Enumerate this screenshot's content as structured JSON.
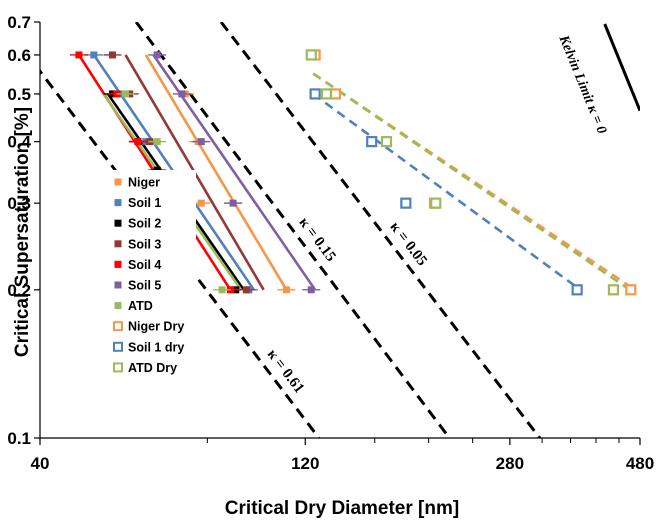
{
  "chart_data": {
    "type": "scatter",
    "xlabel": "Critical Dry Diameter [nm]",
    "ylabel": "Critical Supersaturation [%]",
    "x_scale": "log",
    "y_scale": "log",
    "xlim": [
      40,
      480
    ],
    "ylim": [
      0.1,
      0.7
    ],
    "x_ticks": [
      40,
      120,
      280,
      480
    ],
    "y_ticks": [
      0.1,
      0.2,
      0.3,
      0.4,
      0.5,
      0.6,
      0.7
    ],
    "x_tick_labels": [
      "40",
      "120",
      "280",
      "480"
    ],
    "y_tick_labels": [
      "0.1",
      "0.2",
      "0.3",
      "0.4",
      "0.5",
      "0.6",
      "0.7"
    ],
    "grid": false,
    "legend_position": "left",
    "kappa_lines": [
      {
        "label": "κ = 0.61",
        "kappa": 0.61,
        "x_at_0_6": 38,
        "x_at_0_1": 127
      },
      {
        "label": "κ = 0.15",
        "kappa": 0.15,
        "x_at_0_6": 66,
        "x_at_0_1": 218
      },
      {
        "label": "κ = 0.05",
        "kappa": 0.05,
        "x_at_0_6": 94,
        "x_at_0_1": 317
      }
    ],
    "kelvin_limit": {
      "label": "Kelvin Limit κ = 0",
      "points": [
        [
          340,
          0.7
        ],
        [
          480,
          0.48
        ]
      ]
    },
    "series": [
      {
        "name": "Niger",
        "color": "#f79646",
        "marker": "filled-square",
        "points": [
          [
            73,
            0.5
          ],
          [
            77,
            0.4
          ],
          [
            78,
            0.3
          ],
          [
            111,
            0.2
          ]
        ],
        "fit": [
          [
            62,
            0.6
          ],
          [
            111,
            0.2
          ]
        ]
      },
      {
        "name": "Soil 1",
        "color": "#4f81bd",
        "marker": "filled-square",
        "points": [
          [
            50,
            0.6
          ],
          [
            56,
            0.5
          ],
          [
            62,
            0.4
          ],
          [
            68,
            0.3
          ],
          [
            95,
            0.2
          ]
        ],
        "fit": [
          [
            50,
            0.6
          ],
          [
            97,
            0.2
          ]
        ]
      },
      {
        "name": "Soil 2",
        "color": "#000000",
        "marker": "filled-square",
        "points": [
          [
            54,
            0.5
          ],
          [
            60,
            0.4
          ],
          [
            65,
            0.35
          ],
          [
            67,
            0.3
          ],
          [
            70,
            0.25
          ],
          [
            90,
            0.2
          ]
        ],
        "fit": [
          [
            53,
            0.5
          ],
          [
            93,
            0.2
          ]
        ]
      },
      {
        "name": "Soil 3",
        "color": "#953735",
        "marker": "filled-square",
        "points": [
          [
            54,
            0.6
          ],
          [
            58,
            0.5
          ],
          [
            63,
            0.4
          ],
          [
            72,
            0.3
          ],
          [
            94,
            0.2
          ]
        ],
        "fit": [
          [
            57,
            0.6
          ],
          [
            101,
            0.2
          ]
        ]
      },
      {
        "name": "Soil 4",
        "color": "#ff0000",
        "marker": "filled-square",
        "points": [
          [
            47,
            0.6
          ],
          [
            55,
            0.5
          ],
          [
            60,
            0.4
          ],
          [
            68,
            0.3
          ],
          [
            88,
            0.2
          ]
        ],
        "fit": [
          [
            47,
            0.6
          ],
          [
            88,
            0.2
          ]
        ]
      },
      {
        "name": "Soil 5",
        "color": "#7f5fa0",
        "marker": "filled-square",
        "points": [
          [
            65,
            0.6
          ],
          [
            72,
            0.5
          ],
          [
            78,
            0.4
          ],
          [
            89,
            0.3
          ],
          [
            123,
            0.2
          ]
        ],
        "fit": [
          [
            64,
            0.6
          ],
          [
            125,
            0.2
          ]
        ]
      },
      {
        "name": "ATD",
        "color": "#9bbb59",
        "marker": "filled-square",
        "points": [
          [
            57,
            0.5
          ],
          [
            65,
            0.4
          ],
          [
            70,
            0.3
          ],
          [
            85,
            0.2
          ]
        ],
        "fit": [
          [
            52,
            0.5
          ],
          [
            92,
            0.2
          ]
        ]
      },
      {
        "name": "Niger Dry",
        "color": "#f79646",
        "marker": "open-square",
        "points": [
          [
            125,
            0.6
          ],
          [
            136,
            0.5
          ],
          [
            205,
            0.3
          ],
          [
            462,
            0.2
          ]
        ],
        "fit": [
          [
            124,
            0.55
          ],
          [
            470,
            0.2
          ]
        ]
      },
      {
        "name": "Soil 1 dry",
        "color": "#4f81bd",
        "marker": "open-square",
        "points": [
          [
            125,
            0.5
          ],
          [
            158,
            0.4
          ],
          [
            182,
            0.3
          ],
          [
            370,
            0.2
          ]
        ],
        "fit": [
          [
            124,
            0.5
          ],
          [
            375,
            0.2
          ]
        ]
      },
      {
        "name": "ATD Dry",
        "color": "#9bbb59",
        "marker": "open-square",
        "points": [
          [
            123,
            0.6
          ],
          [
            131,
            0.5
          ],
          [
            168,
            0.4
          ],
          [
            206,
            0.3
          ],
          [
            430,
            0.2
          ]
        ],
        "fit": [
          [
            124,
            0.55
          ],
          [
            460,
            0.2
          ]
        ]
      }
    ]
  }
}
